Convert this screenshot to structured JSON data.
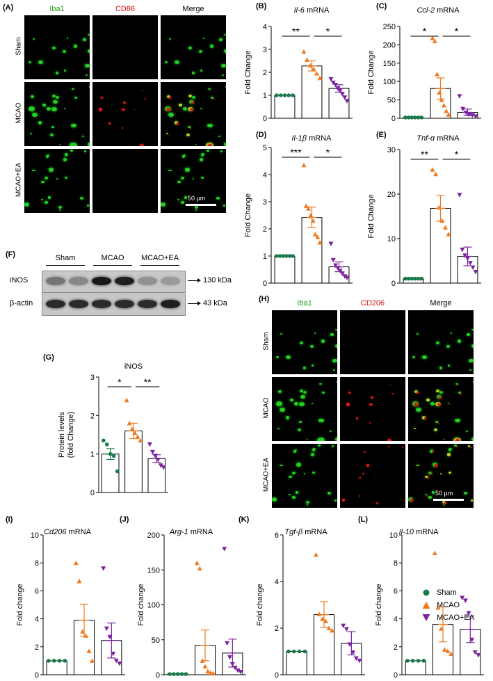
{
  "micro_top": {
    "label": "(A)",
    "columns": [
      {
        "text": "Iba1",
        "color": "#1aa01a"
      },
      {
        "text": "CD86",
        "color": "#d01010"
      },
      {
        "text": "Merge",
        "color": "#000000"
      }
    ],
    "rows": [
      "Sham",
      "MCAO",
      "MCAO+EA"
    ],
    "scale": "50 µm"
  },
  "micro_bottom": {
    "label": "(H)",
    "columns": [
      {
        "text": "Iba1",
        "color": "#1aa01a"
      },
      {
        "text": "CD206",
        "color": "#d01010"
      },
      {
        "text": "Merge",
        "color": "#000000"
      }
    ],
    "rows": [
      "Sham",
      "MCAO",
      "MCAO+EA"
    ],
    "scale": "50 µm"
  },
  "western": {
    "label": "(F)",
    "groups": [
      "Sham",
      "MCAO",
      "MCAO+EA"
    ],
    "bands": [
      {
        "name": "iNOS",
        "size": "130 kDa",
        "intensities": [
          0.45,
          0.35,
          0.95,
          0.92,
          0.3,
          0.25
        ]
      },
      {
        "name": "β-actin",
        "size": "43 kDa",
        "intensities": [
          0.85,
          0.85,
          0.85,
          0.85,
          0.85,
          0.92
        ]
      }
    ]
  },
  "legend": {
    "items": [
      {
        "name": "Sham",
        "color": "#1a7a4a",
        "marker": "circle"
      },
      {
        "name": "MCAO",
        "color": "#f07a20",
        "marker": "triangle-up"
      },
      {
        "name": "MCAO+EA",
        "color": "#7a22a0",
        "marker": "triangle-down"
      }
    ]
  },
  "colors": {
    "sham": "#1a7a4a",
    "mcao": "#f07a20",
    "ea": "#7a22a0"
  },
  "chart_data": [
    {
      "id": "B",
      "label": "(B)",
      "type": "bar",
      "title_italic": "Il-6",
      "title_rest": " mRNA",
      "ylabel": "Fold Change",
      "categories": [
        "Sham",
        "MCAO",
        "MCAO+EA"
      ],
      "ylim": [
        0,
        4
      ],
      "yticks": [
        "0",
        "1",
        "2",
        "3",
        "4"
      ],
      "values": [
        1.0,
        2.28,
        1.3
      ],
      "sem": [
        0.0,
        0.22,
        0.16
      ],
      "points": [
        [
          1,
          1,
          1,
          1,
          1
        ],
        [
          2.9,
          2.55,
          2.3,
          2.15,
          1.95,
          1.75
        ],
        [
          1.7,
          1.55,
          1.45,
          1.3,
          1.2,
          1.05,
          0.9,
          0.75
        ]
      ],
      "sig": [
        {
          "from": 0,
          "to": 1,
          "text": "**"
        },
        {
          "from": 1,
          "to": 2,
          "text": "*"
        }
      ]
    },
    {
      "id": "C",
      "label": "(C)",
      "type": "bar",
      "title_italic": "Ccl-2",
      "title_rest": " mRNA",
      "ylabel": "Fold Change",
      "categories": [
        "Sham",
        "MCAO",
        "MCAO+EA"
      ],
      "ylim": [
        0,
        250
      ],
      "yticks": [
        "0",
        "50",
        "100",
        "150",
        "200",
        "250"
      ],
      "values": [
        2,
        81,
        16
      ],
      "sem": [
        1,
        29,
        9
      ],
      "points": [
        [
          2,
          2,
          2,
          2,
          2,
          2
        ],
        [
          218,
          210,
          120,
          70,
          50,
          35,
          20,
          10
        ],
        [
          60,
          25,
          15,
          10,
          8,
          5
        ]
      ],
      "sig": [
        {
          "from": 0,
          "to": 1,
          "text": "*"
        },
        {
          "from": 1,
          "to": 2,
          "text": "*"
        }
      ]
    },
    {
      "id": "D",
      "label": "(D)",
      "type": "bar",
      "title_italic": "Il-1β",
      "title_rest": " mRNA",
      "ylabel": "Fold Change",
      "categories": [
        "Sham",
        "MCAO",
        "MCAO+EA"
      ],
      "ylim": [
        0,
        5
      ],
      "yticks": [
        "0",
        "1",
        "2",
        "3",
        "4",
        "5"
      ],
      "values": [
        1.0,
        2.42,
        0.6
      ],
      "sem": [
        0.0,
        0.38,
        0.18
      ],
      "points": [
        [
          1,
          1,
          1,
          1,
          1,
          1
        ],
        [
          4.35,
          2.85,
          2.75,
          2.5,
          2.3,
          1.8,
          1.7,
          1.5
        ],
        [
          1.45,
          0.85,
          0.65,
          0.55,
          0.45,
          0.35,
          0.25,
          0.2
        ]
      ],
      "sig": [
        {
          "from": 0,
          "to": 1,
          "text": "***"
        },
        {
          "from": 1,
          "to": 2,
          "text": "*"
        }
      ]
    },
    {
      "id": "E",
      "label": "(E)",
      "type": "bar",
      "title_italic": "Tnf-α",
      "title_rest": " mRNA",
      "ylabel": "Fold Change",
      "categories": [
        "Sham",
        "MCAO",
        "MCAO+EA"
      ],
      "ylim": [
        0,
        30
      ],
      "yticks": [
        "0",
        "10",
        "20",
        "30"
      ],
      "values": [
        1.0,
        16.8,
        6.0
      ],
      "sem": [
        0.0,
        2.9,
        2.1
      ],
      "points": [
        [
          1,
          1,
          1,
          1,
          1,
          1
        ],
        [
          25.5,
          24.5,
          17,
          14,
          12.5,
          11
        ],
        [
          19.8,
          7.5,
          6.2,
          5.5,
          4.5,
          3.5,
          2.5
        ]
      ],
      "sig": [
        {
          "from": 0,
          "to": 1,
          "text": "**"
        },
        {
          "from": 1,
          "to": 2,
          "text": "*"
        }
      ]
    },
    {
      "id": "G",
      "label": "(G)",
      "type": "bar",
      "title": "iNOS",
      "ylabel": "Protein levels",
      "ylabel2": "(fold Change)",
      "categories": [
        "Sham",
        "MCAO",
        "MCAO+EA"
      ],
      "ylim": [
        0,
        3
      ],
      "yticks": [
        "0",
        "1",
        "2",
        "3"
      ],
      "values": [
        1.0,
        1.6,
        0.88
      ],
      "sem": [
        0.14,
        0.2,
        0.1
      ],
      "points": [
        [
          1.35,
          1.25,
          1.0,
          0.95,
          0.55
        ],
        [
          2.4,
          1.8,
          1.65,
          1.55,
          1.45,
          1.35
        ],
        [
          1.25,
          1.05,
          0.95,
          0.85,
          0.7,
          0.65
        ]
      ],
      "sig": [
        {
          "from": 0,
          "to": 1,
          "text": "*"
        },
        {
          "from": 1,
          "to": 2,
          "text": "**"
        }
      ]
    },
    {
      "id": "I",
      "label": "(I)",
      "type": "bar",
      "title_italic": "Cd206",
      "title_rest": " mRNA",
      "ylabel": "Fold change",
      "categories": [
        "Sham",
        "MCAO",
        "MCAO+EA"
      ],
      "ylim": [
        0,
        10
      ],
      "yticks": [
        "0",
        "2",
        "4",
        "6",
        "8",
        "10"
      ],
      "values": [
        1.0,
        3.9,
        2.45
      ],
      "sem": [
        0.0,
        1.15,
        1.25
      ],
      "points": [
        [
          1,
          1,
          1,
          1
        ],
        [
          8,
          6.7,
          3.1,
          2.8,
          1.7,
          1.0
        ],
        [
          7.6,
          3.3,
          2.7,
          1.5,
          1.0,
          0.8
        ]
      ],
      "sig": []
    },
    {
      "id": "J",
      "label": "(J)",
      "type": "bar",
      "title_italic": "Arg-1",
      "title_rest": " mRNA",
      "ylabel": "Fold change",
      "categories": [
        "Sham",
        "MCAO",
        "MCAO+EA"
      ],
      "ylim": [
        0,
        200
      ],
      "yticks": [
        "0",
        "50",
        "100",
        "150",
        "200"
      ],
      "values": [
        1,
        42,
        31
      ],
      "sem": [
        0.5,
        22,
        20
      ],
      "points": [
        [
          1,
          1,
          1,
          1,
          1
        ],
        [
          160,
          152,
          20,
          12,
          5,
          3,
          2
        ],
        [
          180,
          45,
          25,
          15,
          10,
          6,
          4
        ]
      ],
      "sig": []
    },
    {
      "id": "K",
      "label": "(K)",
      "type": "bar",
      "title_italic": "Tgf-β",
      "title_rest": " mRNA",
      "ylabel": "Fold change",
      "categories": [
        "Sham",
        "MCAO",
        "MCAO+EA"
      ],
      "ylim": [
        0,
        6
      ],
      "yticks": [
        "0",
        "2",
        "4",
        "6"
      ],
      "values": [
        1.0,
        2.58,
        1.35
      ],
      "sem": [
        0.0,
        0.55,
        0.5
      ],
      "points": [
        [
          1,
          1,
          1,
          1
        ],
        [
          5.15,
          2.6,
          2.4,
          2.3,
          2.0,
          1.9
        ],
        [
          2.1,
          1.95,
          1.3,
          0.95,
          0.7,
          0.6
        ]
      ],
      "sig": []
    },
    {
      "id": "L",
      "label": "(L)",
      "type": "bar",
      "title_italic": "Il-10",
      "title_rest": " mRNA",
      "ylabel": "Fold change",
      "categories": [
        "Sham",
        "MCAO",
        "MCAO+EA"
      ],
      "ylim": [
        0,
        10
      ],
      "yticks": [
        "0",
        "2",
        "4",
        "6",
        "8",
        "10"
      ],
      "values": [
        1.0,
        3.6,
        3.25
      ],
      "sem": [
        0.0,
        1.25,
        0.95
      ],
      "points": [
        [
          1,
          1,
          1,
          1
        ],
        [
          8.7,
          4.8,
          3.3,
          1.8,
          1.7,
          1.5
        ],
        [
          5.5,
          5.3,
          4.4,
          2.5,
          1.6,
          1.4
        ]
      ],
      "sig": []
    }
  ]
}
